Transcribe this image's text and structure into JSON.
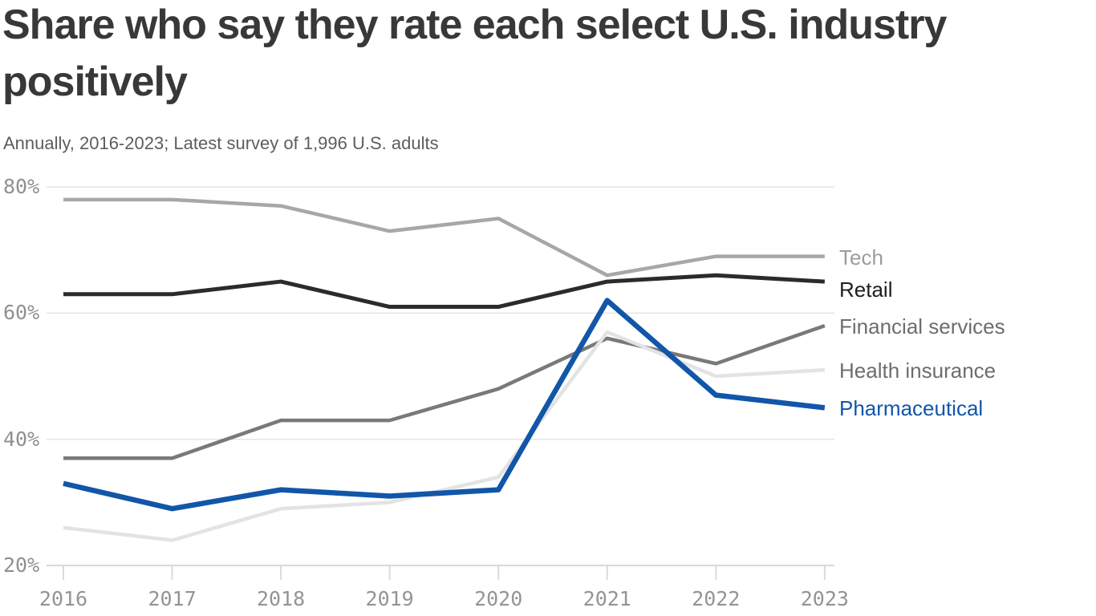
{
  "header": {
    "title_lines": [
      "Share who say they rate each select U.S. industry",
      "positively"
    ],
    "subtitle": "Annually, 2016-2023; Latest survey of 1,996 U.S. adults"
  },
  "chart_data": {
    "type": "line",
    "title": "Share who say they rate each select U.S. industry positively",
    "subtitle": "Annually, 2016-2023; Latest survey of 1,996 U.S. adults",
    "x": [
      "2016",
      "2017",
      "2018",
      "2019",
      "2020",
      "2021",
      "2022",
      "2023"
    ],
    "xlabel": "",
    "ylabel": "",
    "y_ticks": [
      {
        "label": "80%",
        "value": 80
      },
      {
        "label": "60%",
        "value": 60
      },
      {
        "label": "40%",
        "value": 40
      },
      {
        "label": "20%",
        "value": 20
      }
    ],
    "ylim": [
      20,
      83
    ],
    "grid": true,
    "legend_position": "right",
    "series": [
      {
        "name": "Tech",
        "values": [
          78,
          78,
          77,
          73,
          75,
          66,
          69,
          69
        ],
        "color": "#a7a7a7",
        "label_color": "#9c9c9c",
        "stroke_width": 4.5
      },
      {
        "name": "Retail",
        "values": [
          63,
          63,
          65,
          61,
          61,
          65,
          66,
          65
        ],
        "color": "#2b2b2b",
        "label_color": "#1e1e1e",
        "stroke_width": 5,
        "label_dy": 10
      },
      {
        "name": "Financial services",
        "values": [
          37,
          37,
          43,
          43,
          48,
          56,
          52,
          58
        ],
        "color": "#797979",
        "label_color": "#6d6d6d",
        "stroke_width": 4.5
      },
      {
        "name": "Health insurance",
        "values": [
          26,
          24,
          29,
          30,
          34,
          57,
          50,
          51
        ],
        "color": "#e3e3e3",
        "label_color": "#6d6d6d",
        "stroke_width": 4.5
      },
      {
        "name": "Pharmaceutical",
        "values": [
          33,
          29,
          32,
          31,
          32,
          62,
          47,
          45
        ],
        "color": "#1156a9",
        "label_color": "#1156a9",
        "stroke_width": 6.5
      }
    ]
  },
  "colors": {
    "background": "#ffffff",
    "title": "#383838",
    "subtitle": "#5d5d5d",
    "axis_label": "#929292",
    "gridline": "#e5e5e5",
    "axis_line": "#d8d8d8",
    "tick_mark": "#dadada"
  }
}
